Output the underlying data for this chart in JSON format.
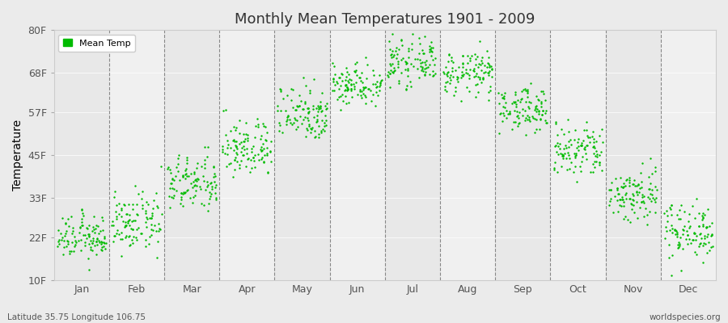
{
  "title": "Monthly Mean Temperatures 1901 - 2009",
  "ylabel": "Temperature",
  "yticks": [
    10,
    22,
    33,
    45,
    57,
    68,
    80
  ],
  "ytick_labels": [
    "10F",
    "22F",
    "33F",
    "45F",
    "57F",
    "68F",
    "80F"
  ],
  "ylim": [
    10,
    80
  ],
  "bg_color": "#ebebeb",
  "plot_bg_color": "#ebebeb",
  "dot_color": "#00bb00",
  "dot_size": 3,
  "legend_label": "Mean Temp",
  "subtitle_left": "Latitude 35.75 Longitude 106.75",
  "subtitle_right": "worldspecies.org",
  "months": [
    "Jan",
    "Feb",
    "Mar",
    "Apr",
    "May",
    "Jun",
    "Jul",
    "Aug",
    "Sep",
    "Oct",
    "Nov",
    "Dec"
  ],
  "month_mean_temps_F": [
    22,
    26,
    37,
    47,
    57,
    65,
    71,
    68,
    58,
    46,
    34,
    24
  ],
  "month_std_F": [
    3,
    4,
    4,
    4,
    4,
    3,
    3,
    3,
    3,
    4,
    4,
    4
  ],
  "n_years": 109,
  "band_colors": [
    "#e8e8e8",
    "#f0f0f0"
  ]
}
